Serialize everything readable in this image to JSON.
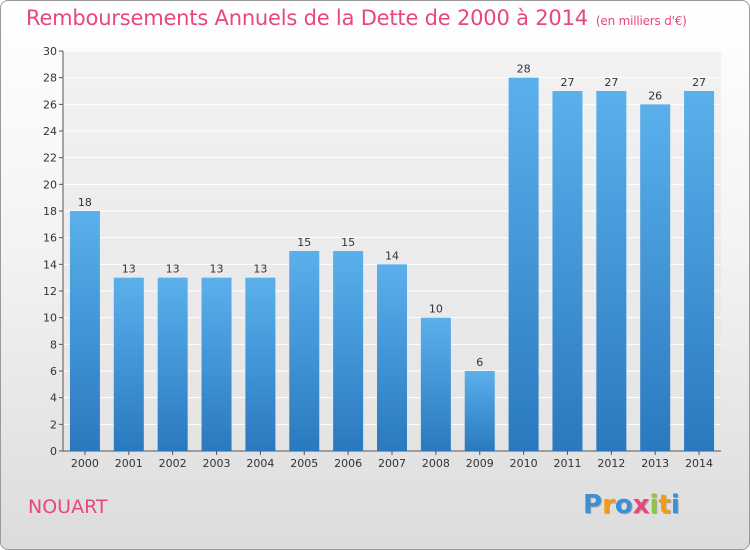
{
  "chart_data": {
    "type": "bar",
    "title": "Remboursements Annuels de la Dette de 2000 à 2014",
    "unit_note": "(en milliers d'€)",
    "categories": [
      "2000",
      "2001",
      "2002",
      "2003",
      "2004",
      "2005",
      "2006",
      "2007",
      "2008",
      "2009",
      "2010",
      "2011",
      "2012",
      "2013",
      "2014"
    ],
    "values": [
      18,
      13,
      13,
      13,
      13,
      15,
      15,
      14,
      10,
      6,
      28,
      27,
      27,
      26,
      27
    ],
    "ylim": [
      0,
      30
    ],
    "yticks": [
      0,
      2,
      4,
      6,
      8,
      10,
      12,
      14,
      16,
      18,
      20,
      22,
      24,
      26,
      28,
      30
    ],
    "xlabel": "",
    "ylabel": "",
    "grid": true,
    "bar_color": "#3a8fd6"
  },
  "commune": "NOUART",
  "logo": {
    "letters": [
      "P",
      "r",
      "o",
      "x",
      "i",
      "t",
      "i"
    ],
    "colors": [
      "#3b8fd6",
      "#f39c12",
      "#3b8fd6",
      "#e8477a",
      "#8dc63f",
      "#f39c12",
      "#3b8fd6"
    ]
  }
}
